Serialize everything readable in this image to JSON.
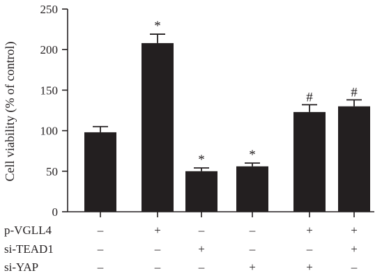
{
  "chart_data": {
    "type": "bar",
    "ylabel": "Cell viability (% of control)",
    "ylim": [
      0,
      250
    ],
    "yticks": [
      0,
      50,
      100,
      150,
      200,
      250
    ],
    "values": [
      98,
      208,
      50,
      56,
      123,
      130
    ],
    "errors": [
      7,
      11,
      4,
      4,
      9,
      8
    ],
    "annotations": [
      "",
      "*",
      "*",
      "*",
      "#",
      "#"
    ],
    "grid": false,
    "treatment_rows": [
      {
        "label": "p-VGLL4",
        "signs": [
          "–",
          "+",
          "–",
          "–",
          "+",
          "+"
        ]
      },
      {
        "label": "si-TEAD1",
        "signs": [
          "–",
          "–",
          "+",
          "–",
          "–",
          "+"
        ]
      },
      {
        "label": "si-YAP",
        "signs": [
          "–",
          "–",
          "–",
          "+",
          "+",
          "–"
        ]
      }
    ]
  }
}
